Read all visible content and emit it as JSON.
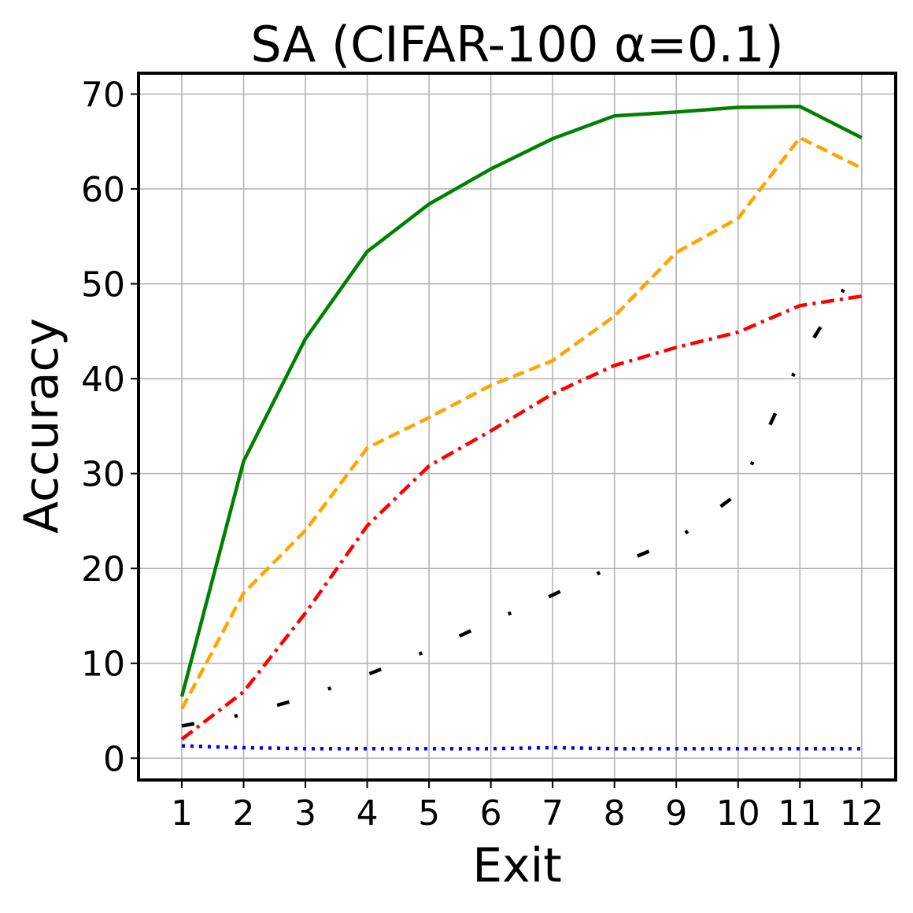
{
  "chart_data": {
    "type": "line",
    "title": "SA (CIFAR-100 α=0.1)",
    "xlabel": "Exit",
    "ylabel": "Accuracy",
    "x": [
      1,
      2,
      3,
      4,
      5,
      6,
      7,
      8,
      9,
      10,
      11,
      12
    ],
    "xlim": [
      0.3,
      12.55
    ],
    "ylim": [
      -2.3,
      72.2
    ],
    "yticks": [
      0,
      10,
      20,
      30,
      40,
      50,
      60,
      70
    ],
    "grid": true,
    "series": [
      {
        "color": "#008000",
        "style": "solid",
        "values": [
          6.5,
          31.3,
          44.2,
          53.4,
          58.4,
          62.1,
          65.3,
          67.7,
          68.1,
          68.6,
          68.7,
          65.4
        ]
      },
      {
        "color": "#ffa500",
        "style": "dashed",
        "values": [
          5.2,
          17.4,
          24.0,
          32.7,
          35.9,
          39.3,
          41.9,
          46.6,
          53.3,
          56.9,
          65.4,
          62.2
        ]
      },
      {
        "color": "#ff0000",
        "style": "dashdot",
        "values": [
          2.0,
          7.0,
          15.3,
          24.5,
          30.8,
          34.5,
          38.4,
          41.4,
          43.3,
          44.9,
          47.7,
          48.7
        ]
      },
      {
        "color": "#000000",
        "style": "loosely-dashdotted",
        "values": [
          3.4,
          4.6,
          6.4,
          8.8,
          11.4,
          14.4,
          17.2,
          20.3,
          23.0,
          27.9,
          41.9,
          52.5
        ]
      },
      {
        "color": "#0000ff",
        "style": "dotted",
        "values": [
          1.3,
          1.1,
          1.0,
          1.0,
          1.0,
          1.0,
          1.1,
          1.0,
          1.0,
          1.0,
          1.0,
          1.0
        ]
      }
    ]
  }
}
